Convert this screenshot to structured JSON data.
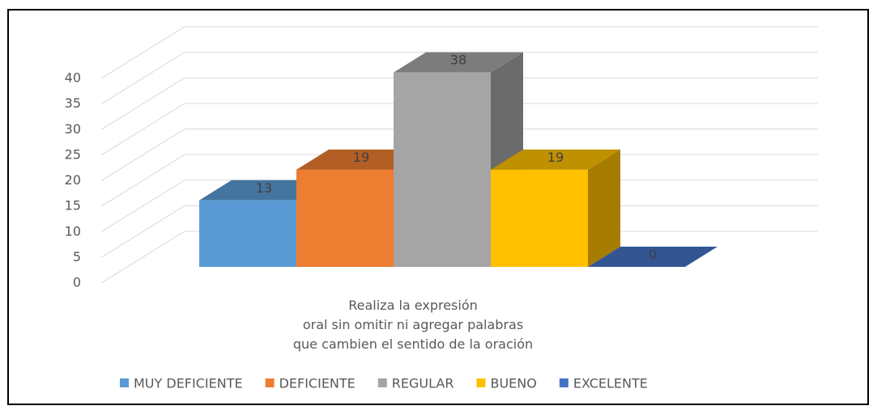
{
  "chart_data": {
    "type": "bar3d",
    "categories": [
      "Realiza la expresión\noral sin omitir ni agregar palabras\nque cambien el sentido de la oración"
    ],
    "series": [
      {
        "name": "MUY DEFICIENTE",
        "color": "#5b9bd5",
        "values": [
          13
        ]
      },
      {
        "name": "DEFICIENTE",
        "color": "#ed7d31",
        "values": [
          19
        ]
      },
      {
        "name": "REGULAR",
        "color": "#a5a5a5",
        "values": [
          38
        ]
      },
      {
        "name": "BUENO",
        "color": "#ffc000",
        "values": [
          19
        ]
      },
      {
        "name": "EXCELENTE",
        "color": "#4472c4",
        "values": [
          0
        ]
      }
    ],
    "ylim": [
      0,
      40
    ],
    "yticks": [
      0,
      5,
      10,
      15,
      20,
      25,
      30,
      35,
      40
    ],
    "grid": true,
    "legend": "bottom"
  }
}
